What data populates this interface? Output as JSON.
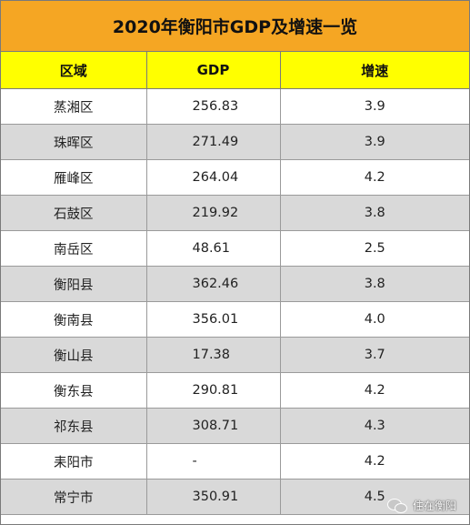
{
  "title": "2020年衡阳市GDP及增速一览",
  "headers": [
    "区域",
    "GDP",
    "增速"
  ],
  "rows": [
    {
      "area": "蒸湘区",
      "gdp": "256.83",
      "growth": "3.9"
    },
    {
      "area": "珠晖区",
      "gdp": "271.49",
      "growth": "3.9"
    },
    {
      "area": "雁峰区",
      "gdp": "264.04",
      "growth": "4.2"
    },
    {
      "area": "石鼓区",
      "gdp": "219.92",
      "growth": "3.8"
    },
    {
      "area": "南岳区",
      "gdp": "48.61",
      "growth": "2.5"
    },
    {
      "area": "衡阳县",
      "gdp": "362.46",
      "growth": "3.8"
    },
    {
      "area": "衡南县",
      "gdp": "356.01",
      "growth": "4.0"
    },
    {
      "area": "衡山县",
      "gdp": "17.38",
      "growth": "3.7"
    },
    {
      "area": "衡东县",
      "gdp": "290.81",
      "growth": "4.2"
    },
    {
      "area": "祁东县",
      "gdp": "308.71",
      "growth": "4.3"
    },
    {
      "area": "耒阳市",
      "gdp": "-",
      "growth": "4.2"
    },
    {
      "area": "常宁市",
      "gdp": "350.91",
      "growth": "4.5"
    }
  ],
  "watermark": {
    "text": "住在衡阳",
    "icon": "wechat-icon"
  },
  "colors": {
    "title_bg": "#f5a623",
    "header_bg": "#ffff00",
    "stripe": "#d9d9d9"
  }
}
